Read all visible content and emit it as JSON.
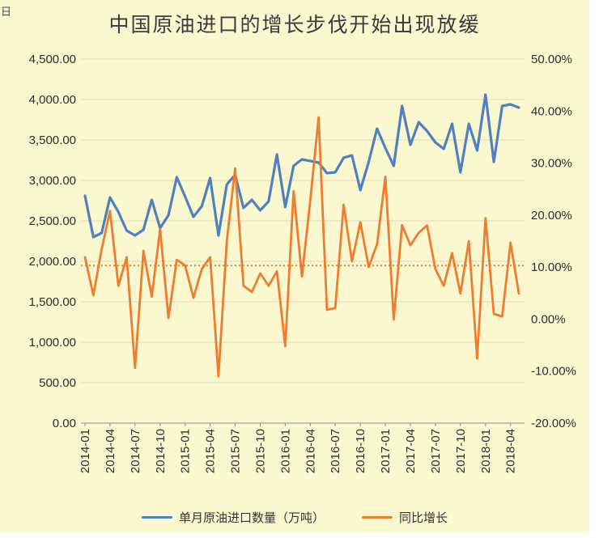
{
  "page": {
    "corner_text": "日",
    "background": "#FBF8D0"
  },
  "chart_data": {
    "type": "line",
    "title": "中国原油进口的增长步伐开始出现放缓",
    "grid": true,
    "legend_position": "bottom",
    "x_tick_every": 3,
    "x": [
      "2014-01",
      "2014-02",
      "2014-03",
      "2014-04",
      "2014-05",
      "2014-06",
      "2014-07",
      "2014-08",
      "2014-09",
      "2014-10",
      "2014-11",
      "2014-12",
      "2015-01",
      "2015-02",
      "2015-03",
      "2015-04",
      "2015-05",
      "2015-06",
      "2015-07",
      "2015-08",
      "2015-09",
      "2015-10",
      "2015-11",
      "2015-12",
      "2016-01",
      "2016-02",
      "2016-03",
      "2016-04",
      "2016-05",
      "2016-06",
      "2016-07",
      "2016-08",
      "2016-09",
      "2016-10",
      "2016-11",
      "2016-12",
      "2017-01",
      "2017-02",
      "2017-03",
      "2017-04",
      "2017-05",
      "2017-06",
      "2017-07",
      "2017-08",
      "2017-09",
      "2017-10",
      "2017-11",
      "2017-12",
      "2018-01",
      "2018-02",
      "2018-03",
      "2018-04",
      "2018-05"
    ],
    "series": [
      {
        "name": "单月原油进口数量（万吨）",
        "axis": "left",
        "color": "#4E81BD",
        "style": "solid",
        "values": [
          2810,
          2300,
          2350,
          2790,
          2610,
          2380,
          2320,
          2390,
          2760,
          2410,
          2570,
          3040,
          2800,
          2550,
          2680,
          3030,
          2320,
          2950,
          3070,
          2660,
          2760,
          2630,
          2740,
          3320,
          2670,
          3180,
          3260,
          3240,
          3220,
          3090,
          3100,
          3280,
          3310,
          2880,
          3230,
          3640,
          3400,
          3180,
          3920,
          3440,
          3720,
          3610,
          3470,
          3390,
          3700,
          3100,
          3700,
          3370,
          4060,
          3230,
          3920,
          3940,
          3900
        ]
      },
      {
        "name": "同比增长",
        "axis": "right",
        "color": "#ED7D31",
        "style": "solid",
        "values": [
          11.9,
          4.6,
          13.4,
          20.8,
          6.4,
          11.9,
          -9.4,
          13.1,
          4.3,
          17.3,
          0.2,
          11.4,
          10.3,
          4.1,
          9.6,
          11.9,
          -11.0,
          15.0,
          29.0,
          6.4,
          5.2,
          8.8,
          6.4,
          9.2,
          -5.2,
          24.6,
          8.2,
          22.8,
          38.8,
          1.8,
          2.1,
          22.0,
          11.1,
          18.6,
          10.0,
          14.4,
          27.4,
          -0.1,
          18.1,
          14.2,
          16.6,
          18.0,
          9.6,
          6.4,
          12.7,
          4.9,
          15.0,
          -7.6,
          19.4,
          1.0,
          0.5,
          14.7,
          4.9
        ]
      }
    ],
    "reference_line": {
      "axis": "right",
      "value": 10.3,
      "style": "dotted",
      "color": "#ED7D31"
    },
    "left_axis": {
      "min": 0,
      "max": 4500,
      "step": 500,
      "tick_labels": [
        "4,500.00",
        "4,000.00",
        "3,500.00",
        "3,000.00",
        "2,500.00",
        "2,000.00",
        "1,500.00",
        "1,000.00",
        "500.00",
        "0.00"
      ]
    },
    "right_axis": {
      "min": -20,
      "max": 50,
      "step": 10,
      "tick_labels": [
        "50.00%",
        "40.00%",
        "30.00%",
        "20.00%",
        "10.00%",
        "0.00%",
        "-10.00%",
        "-20.00%"
      ]
    }
  }
}
